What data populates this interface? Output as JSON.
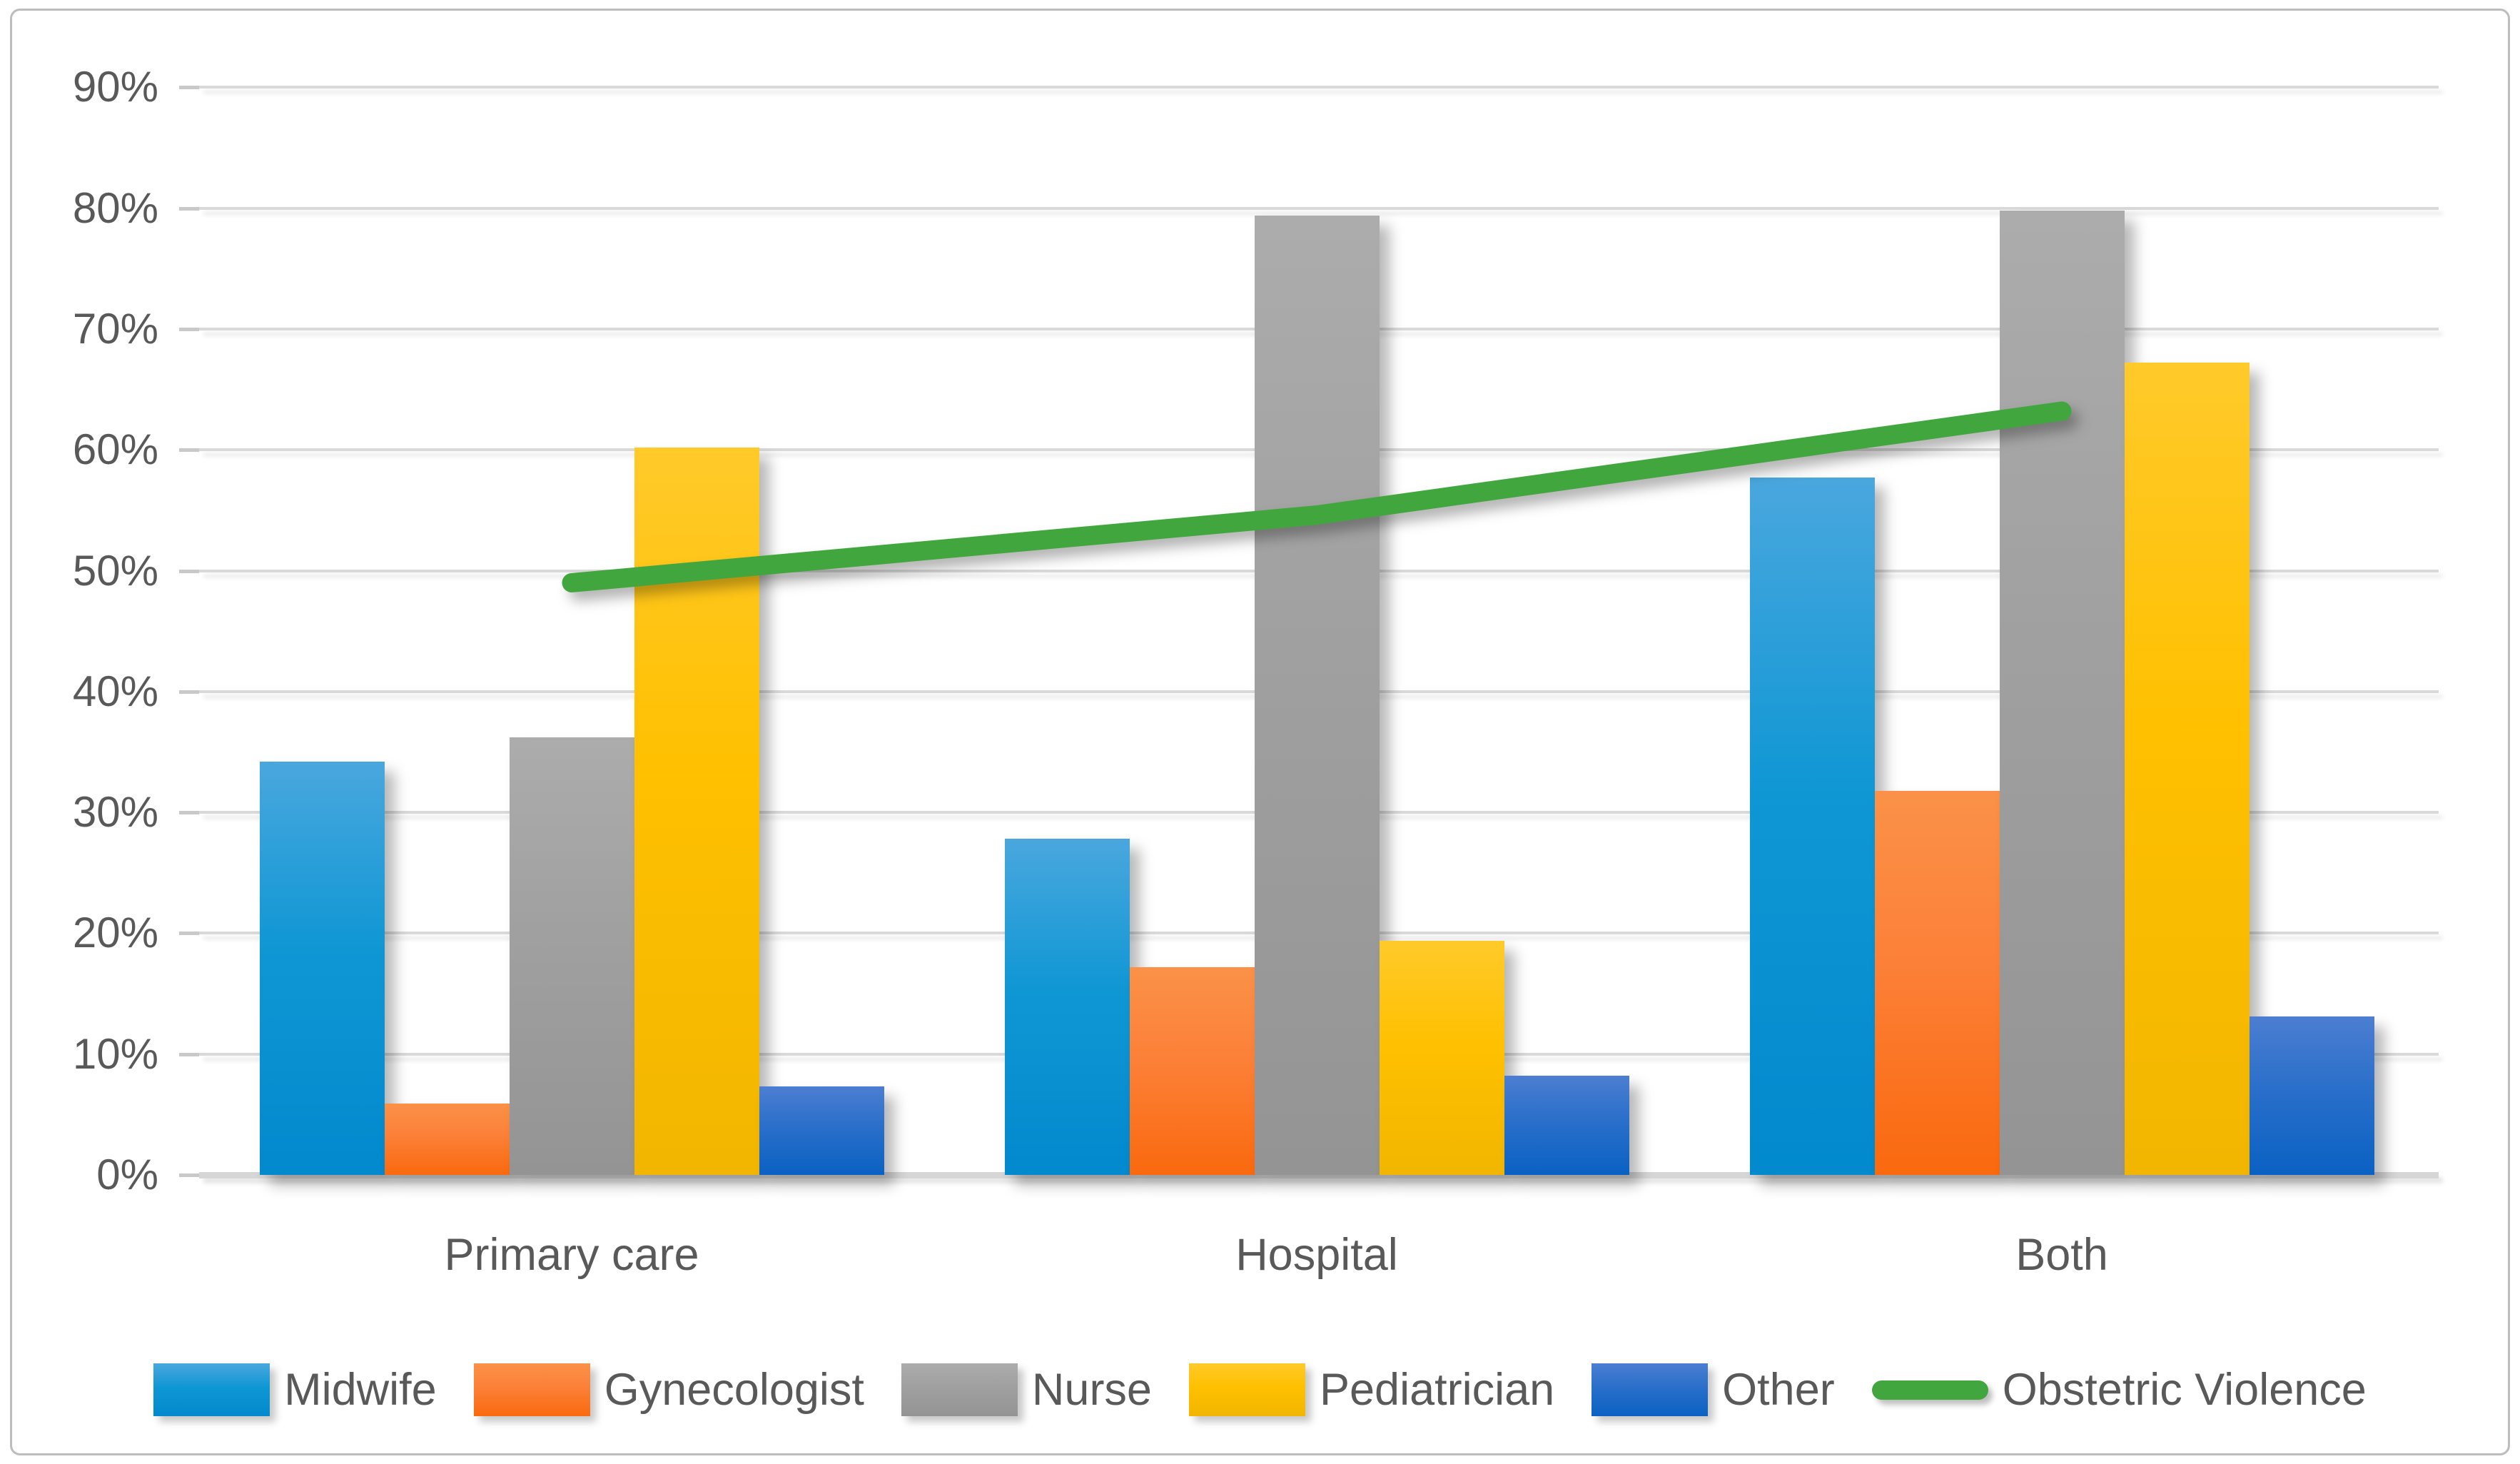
{
  "chart_data": {
    "type": "bar",
    "note": "grouped column chart with one overlaid line series",
    "categories": [
      "Primary care",
      "Hospital",
      "Both"
    ],
    "series": [
      {
        "name": "Midwife",
        "type": "bar",
        "color_top": "#4aa7de",
        "color_mid": "#0f97d4",
        "color_bottom": "#0289ce",
        "values": [
          34.2,
          27.8,
          57.7
        ]
      },
      {
        "name": "Gynecologist",
        "type": "bar",
        "color_top": "#fb9148",
        "color_mid": "#fc8038",
        "color_bottom": "#fa690e",
        "values": [
          5.9,
          17.2,
          31.8
        ]
      },
      {
        "name": "Nurse",
        "type": "bar",
        "color_top": "#acacac",
        "color_mid": "#a0a0a0",
        "color_bottom": "#949494",
        "values": [
          36.2,
          79.4,
          79.8
        ]
      },
      {
        "name": "Pediatrician",
        "type": "bar",
        "color_top": "#ffca2a",
        "color_mid": "#ffc000",
        "color_bottom": "#f2b600",
        "values": [
          60.2,
          19.4,
          67.2
        ]
      },
      {
        "name": "Other",
        "type": "bar",
        "color_top": "#4c7ed2",
        "color_mid": "#2a6fca",
        "color_bottom": "#0a61c3",
        "values": [
          7.3,
          8.2,
          13.1
        ]
      },
      {
        "name": "Obstetric Violence",
        "type": "line",
        "color": "#41a63d",
        "values": [
          49.0,
          54.6,
          63.2
        ]
      }
    ],
    "y_axis": {
      "ticks": [
        "0%",
        "10%",
        "20%",
        "30%",
        "40%",
        "50%",
        "60%",
        "70%",
        "80%",
        "90%"
      ],
      "min": 0,
      "max": 90,
      "grid": true
    },
    "x_axis": {
      "labels": [
        "Primary care",
        "Hospital",
        "Both"
      ]
    },
    "legend_position": "bottom",
    "title": "",
    "xlabel": "",
    "ylabel": ""
  }
}
